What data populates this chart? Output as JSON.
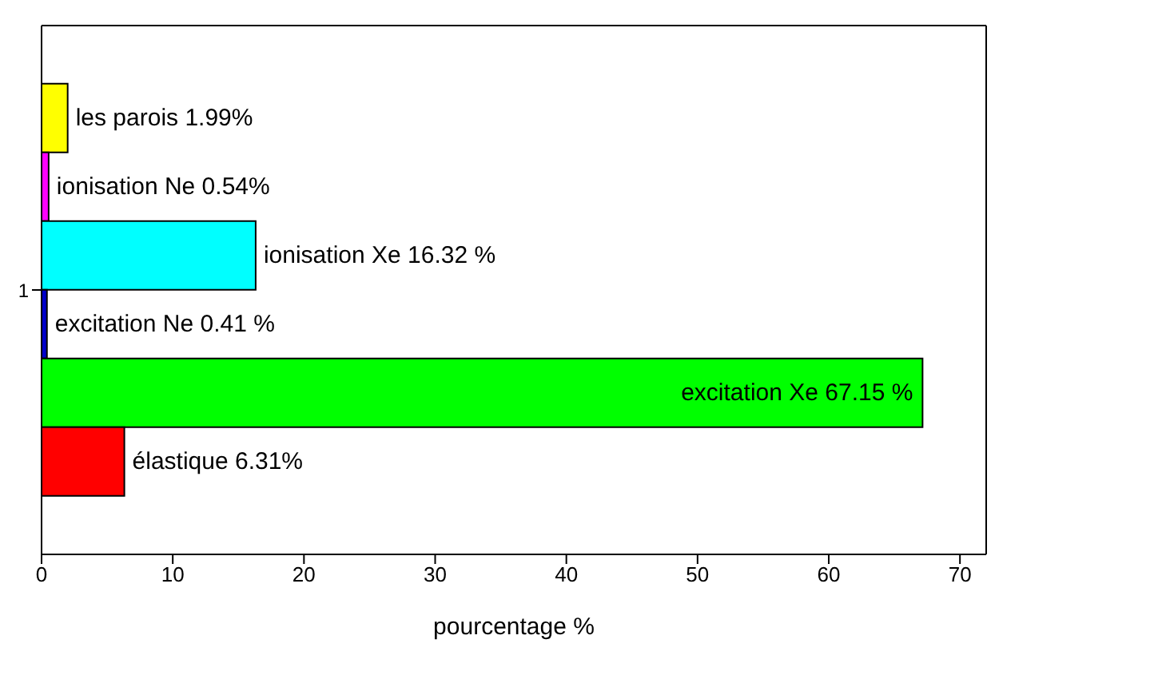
{
  "chart_data": {
    "type": "bar",
    "orientation": "horizontal",
    "categories": [
      "1"
    ],
    "xlabel": "pourcentage %",
    "xlim": [
      0,
      72
    ],
    "xticks": [
      0,
      10,
      20,
      30,
      40,
      50,
      60,
      70
    ],
    "grid": false,
    "legend": false,
    "series": [
      {
        "name": "les parois",
        "color": "#ffff00",
        "values": [
          1.99
        ],
        "value_labels": [
          "1.99%"
        ]
      },
      {
        "name": "ionisation Ne",
        "color": "#ff00ff",
        "values": [
          0.54
        ],
        "value_labels": [
          "0.54%"
        ]
      },
      {
        "name": "ionisation Xe",
        "color": "#00ffff",
        "values": [
          16.32
        ],
        "value_labels": [
          "16.32 %"
        ]
      },
      {
        "name": "excitation Ne",
        "color": "#0000cc",
        "values": [
          0.41
        ],
        "value_labels": [
          "0.41 %"
        ]
      },
      {
        "name": "excitation Xe",
        "color": "#00ff00",
        "values": [
          67.15
        ],
        "value_labels": [
          "67.15 %"
        ]
      },
      {
        "name": "élastique",
        "color": "#ff0000",
        "values": [
          6.31
        ],
        "value_labels": [
          "6.31%"
        ]
      }
    ]
  }
}
